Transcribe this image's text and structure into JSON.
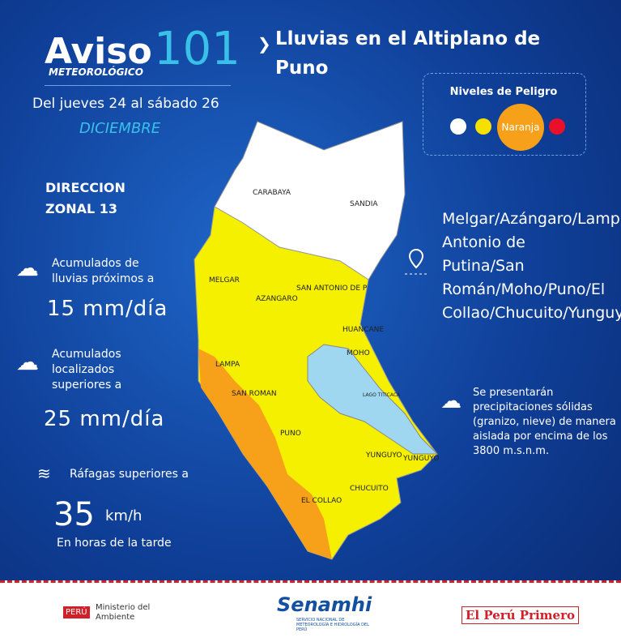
{
  "header": {
    "brand": "Aviso",
    "number": "101",
    "brand_sub": "METEOROLÓGICO",
    "title": "Lluvias en el Altiplano de Puno",
    "dates": "Del jueves 24 al sábado 26",
    "month": "DICIEMBRE"
  },
  "danger_levels": {
    "title": "Niveles de Peligro",
    "active": "Naranja"
  },
  "office": [
    "DIRECCION",
    "ZONAL 13"
  ],
  "indicators": [
    {
      "label": "Acumulados de lluvias próximos a",
      "value": "15 mm/día"
    },
    {
      "label": "Acumulados localizados superiores a",
      "value": "25 mm/día"
    },
    {
      "label": "Ráfagas superiores a",
      "value": "35",
      "unit": "km/h",
      "note": "En horas de la tarde"
    }
  ],
  "provinces": "Melgar/Azángaro/Lampa/Huancané/San Antonio de Putina/San Román/Moho/Puno/El Collao/Chucuito/Yunguyo",
  "note": "Se presentarán precipitaciones sólidas (granizo, nieve) de manera aislada por encima de los 3800 m.s.n.m.",
  "map_labels": [
    "CARABAYA",
    "SANDIA",
    "MELGAR",
    "AZANGARO",
    "SAN ANTONIO DE P",
    "HUANCANE",
    "MOHO",
    "LAMPA",
    "SAN ROMAN",
    "LAGO TITICACA",
    "PUNO",
    "YUNGUYO",
    "YUNGUYO",
    "CHUCUITO",
    "EL COLLAO"
  ],
  "footer": {
    "country": "PERÚ",
    "ministry": "Ministerio del Ambiente",
    "agency": "Senamhi",
    "agency_sub": "SERVICIO NACIONAL DE METEOROLOGÍA E HIDROLOGÍA DEL PERÚ",
    "slogan": "El Perú Primero"
  }
}
